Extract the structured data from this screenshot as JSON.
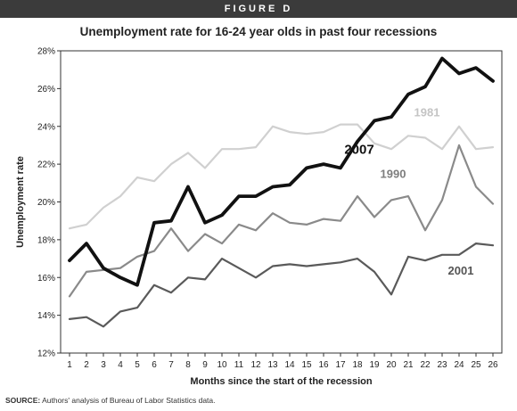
{
  "figure_label": "FIGURE D",
  "source": {
    "prefix": "SOURCE:",
    "text": " Authors' analysis of Bureau of Labor Statistics data."
  },
  "chart_data": {
    "type": "line",
    "title": "Unemployment rate for 16-24 year olds in past four recessions",
    "xlabel": "Months since the start of the recession",
    "ylabel": "Unemployment rate",
    "x": [
      1,
      2,
      3,
      4,
      5,
      6,
      7,
      8,
      9,
      10,
      11,
      12,
      13,
      14,
      15,
      16,
      17,
      18,
      19,
      20,
      21,
      22,
      23,
      24,
      25,
      26
    ],
    "ylim": [
      12,
      28
    ],
    "yticks": [
      12,
      14,
      16,
      18,
      20,
      22,
      24,
      26,
      28
    ],
    "ytick_labels": [
      "12%",
      "14%",
      "16%",
      "18%",
      "20%",
      "22%",
      "24%",
      "26%",
      "28%"
    ],
    "grid": false,
    "series": [
      {
        "name": "1981",
        "color": "#d0d0d0",
        "values": [
          18.6,
          18.8,
          19.7,
          20.3,
          21.3,
          21.1,
          22.0,
          22.6,
          21.8,
          22.8,
          22.8,
          22.9,
          24.0,
          23.7,
          23.6,
          23.7,
          24.1,
          24.1,
          23.1,
          22.8,
          23.5,
          23.4,
          22.8,
          24.0,
          22.8,
          22.9
        ]
      },
      {
        "name": "1990",
        "color": "#8a8a8a",
        "values": [
          15.0,
          16.3,
          16.4,
          16.5,
          17.1,
          17.4,
          18.6,
          17.4,
          18.3,
          17.8,
          18.8,
          18.5,
          19.4,
          18.9,
          18.8,
          19.1,
          19.0,
          20.3,
          19.2,
          20.1,
          20.3,
          18.5,
          20.1,
          23.0,
          20.8,
          19.9
        ]
      },
      {
        "name": "2001",
        "color": "#5a5a5a",
        "values": [
          13.8,
          13.9,
          13.4,
          14.2,
          14.4,
          15.6,
          15.2,
          16.0,
          15.9,
          17.0,
          16.5,
          16.0,
          16.6,
          16.7,
          16.6,
          16.7,
          16.8,
          17.0,
          16.3,
          15.1,
          17.1,
          16.9,
          17.2,
          17.2,
          17.8,
          17.7
        ]
      },
      {
        "name": "2007",
        "color": "#111111",
        "values": [
          16.9,
          17.8,
          16.5,
          16.0,
          15.6,
          18.9,
          19.0,
          20.8,
          18.9,
          19.3,
          20.3,
          20.3,
          20.8,
          20.9,
          21.8,
          22.0,
          21.8,
          23.2,
          24.3,
          24.5,
          25.7,
          26.1,
          27.6,
          26.8,
          27.1,
          26.4
        ]
      }
    ]
  }
}
